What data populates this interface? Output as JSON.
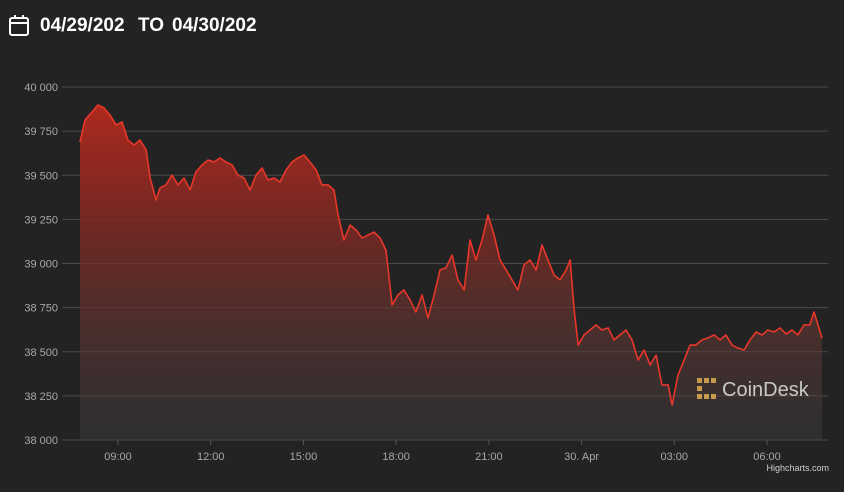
{
  "header": {
    "from": "04/29/202",
    "to_label": "TO",
    "to": "04/30/202"
  },
  "watermark": "CoinDesk",
  "credits": "Highcharts.com",
  "chart_data": {
    "type": "area",
    "color": "#e8372a",
    "grid": true,
    "x": [
      7.77,
      7.93,
      8.16,
      8.35,
      8.55,
      8.74,
      8.94,
      9.13,
      9.32,
      9.52,
      9.71,
      9.91,
      10.04,
      10.23,
      10.36,
      10.55,
      10.75,
      10.94,
      11.14,
      11.33,
      11.52,
      11.72,
      11.91,
      12.11,
      12.3,
      12.49,
      12.69,
      12.88,
      13.08,
      13.27,
      13.47,
      13.66,
      13.85,
      14.05,
      14.24,
      14.44,
      14.63,
      14.82,
      15.02,
      15.21,
      15.41,
      15.6,
      15.8,
      15.99,
      16.12,
      16.31,
      16.51,
      16.7,
      16.9,
      17.09,
      17.28,
      17.48,
      17.67,
      17.87,
      18.06,
      18.25,
      18.45,
      18.64,
      18.84,
      19.03,
      19.23,
      19.42,
      19.61,
      19.81,
      20.0,
      20.2,
      20.39,
      20.58,
      20.78,
      20.97,
      21.17,
      21.36,
      21.56,
      21.75,
      21.94,
      22.14,
      22.33,
      22.53,
      22.72,
      22.91,
      23.11,
      23.3,
      23.5,
      23.63,
      23.76,
      23.89,
      24.08,
      24.27,
      24.47,
      24.66,
      24.86,
      25.05,
      25.24,
      25.44,
      25.63,
      25.83,
      26.02,
      26.22,
      26.41,
      26.6,
      26.8,
      26.93,
      27.12,
      27.32,
      27.51,
      27.7,
      27.9,
      28.09,
      28.29,
      28.48,
      28.67,
      28.87,
      29.06,
      29.26,
      29.45,
      29.65,
      29.84,
      30.03,
      30.23,
      30.42,
      30.62,
      30.81,
      31.0,
      31.2,
      31.39,
      31.52,
      31.65,
      31.78
    ],
    "values": [
      39688,
      39813,
      39858,
      39898,
      39881,
      39841,
      39785,
      39802,
      39700,
      39671,
      39700,
      39643,
      39484,
      39360,
      39428,
      39445,
      39501,
      39445,
      39484,
      39416,
      39518,
      39558,
      39586,
      39575,
      39598,
      39575,
      39558,
      39501,
      39484,
      39416,
      39501,
      39541,
      39473,
      39484,
      39462,
      39530,
      39575,
      39598,
      39615,
      39575,
      39530,
      39445,
      39445,
      39416,
      39275,
      39133,
      39218,
      39190,
      39144,
      39161,
      39178,
      39144,
      39076,
      38765,
      38822,
      38850,
      38793,
      38725,
      38822,
      38691,
      38822,
      38963,
      38975,
      39048,
      38907,
      38850,
      39133,
      39020,
      39133,
      39275,
      39161,
      39020,
      38963,
      38907,
      38850,
      38992,
      39020,
      38963,
      39105,
      39020,
      38935,
      38907,
      38963,
      39020,
      38737,
      38538,
      38595,
      38623,
      38652,
      38623,
      38635,
      38567,
      38595,
      38623,
      38567,
      38453,
      38510,
      38425,
      38481,
      38312,
      38312,
      38198,
      38368,
      38453,
      38538,
      38538,
      38567,
      38578,
      38595,
      38567,
      38595,
      38538,
      38521,
      38510,
      38567,
      38612,
      38595,
      38623,
      38612,
      38635,
      38601,
      38623,
      38595,
      38652,
      38652,
      38725,
      38652,
      38578
    ],
    "xlim": [
      7.77,
      31.78
    ],
    "ylim": [
      38000,
      40000
    ],
    "xticks": [
      {
        "value": 9,
        "label": "09:00"
      },
      {
        "value": 12,
        "label": "12:00"
      },
      {
        "value": 15,
        "label": "15:00"
      },
      {
        "value": 18,
        "label": "18:00"
      },
      {
        "value": 21,
        "label": "21:00"
      },
      {
        "value": 24,
        "label": "30. Apr"
      },
      {
        "value": 27,
        "label": "03:00"
      },
      {
        "value": 30,
        "label": "06:00"
      }
    ],
    "yticks": [
      {
        "value": 38000,
        "label": "38 000"
      },
      {
        "value": 38250,
        "label": "38 250"
      },
      {
        "value": 38500,
        "label": "38 500"
      },
      {
        "value": 38750,
        "label": "38 750"
      },
      {
        "value": 39000,
        "label": "39 000"
      },
      {
        "value": 39250,
        "label": "39 250"
      },
      {
        "value": 39500,
        "label": "39 500"
      },
      {
        "value": 39750,
        "label": "39 750"
      },
      {
        "value": 40000,
        "label": "40 000"
      }
    ]
  }
}
